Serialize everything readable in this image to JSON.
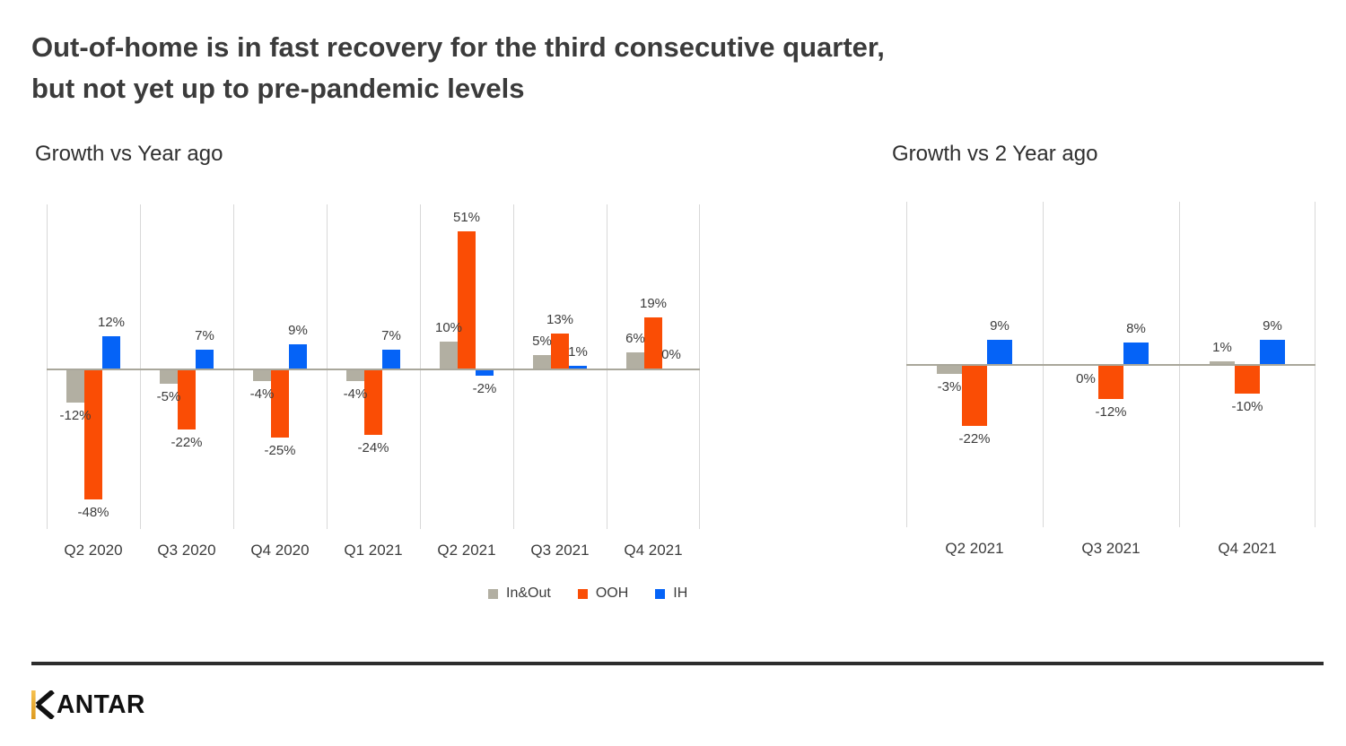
{
  "page": {
    "title_line1": "Out-of-home is in fast recovery for the third consecutive quarter,",
    "title_line2": "but not yet up to pre-pandemic levels"
  },
  "legend": {
    "items": [
      {
        "label": "In&Out",
        "color_key": "in_out"
      },
      {
        "label": "OOH",
        "color_key": "ooh"
      },
      {
        "label": "IH",
        "color_key": "ih"
      }
    ]
  },
  "footer": {
    "brand": "KANTAR"
  },
  "colors": {
    "in_out": "#b2afa2",
    "ooh": "#fa4d05",
    "ih": "#0563f7",
    "gridline": "#d8d8d8",
    "zero_line": "#a9a79b",
    "title_text": "#3b3b3b",
    "label_text": "#3c3c3c",
    "footer_rule": "#2d2d2d",
    "brand_gold": "#efac32"
  },
  "chart_data": [
    {
      "type": "bar",
      "title": "Growth vs Year ago",
      "categories": [
        "Q2 2020",
        "Q3 2020",
        "Q4 2020",
        "Q1 2021",
        "Q2 2021",
        "Q3 2021",
        "Q4 2021"
      ],
      "series": [
        {
          "name": "In&Out",
          "color_key": "in_out",
          "values": [
            -12,
            -5,
            -4,
            -4,
            10,
            5,
            6
          ],
          "labels": [
            "-12%",
            "-5%",
            "-4%",
            "-4%",
            "10%",
            "5%",
            "6%"
          ]
        },
        {
          "name": "OOH",
          "color_key": "ooh",
          "values": [
            -48,
            -22,
            -25,
            -24,
            51,
            13,
            19
          ],
          "labels": [
            "-48%",
            "-22%",
            "-25%",
            "-24%",
            "51%",
            "13%",
            "19%"
          ]
        },
        {
          "name": "IH",
          "color_key": "ih",
          "values": [
            12,
            7,
            9,
            7,
            -2,
            1,
            0
          ],
          "labels": [
            "12%",
            "7%",
            "9%",
            "7%",
            "-2%",
            "1%",
            "0%"
          ]
        }
      ],
      "ylim": [
        -58,
        61
      ],
      "grid": "vertical-only",
      "legend_position": "bottom",
      "zero_label_side": "above"
    },
    {
      "type": "bar",
      "title": "Growth vs 2 Year ago",
      "categories": [
        "Q2 2021",
        "Q3 2021",
        "Q4 2021"
      ],
      "series": [
        {
          "name": "In&Out",
          "color_key": "in_out",
          "values": [
            -3,
            0,
            1
          ],
          "labels": [
            "-3%",
            "0%",
            "1%"
          ]
        },
        {
          "name": "OOH",
          "color_key": "ooh",
          "values": [
            -22,
            -12,
            -10
          ],
          "labels": [
            "-22%",
            "-12%",
            "-10%"
          ]
        },
        {
          "name": "IH",
          "color_key": "ih",
          "values": [
            9,
            8,
            9
          ],
          "labels": [
            "9%",
            "8%",
            "9%"
          ]
        }
      ],
      "ylim": [
        -58,
        60
      ],
      "grid": "vertical-only",
      "legend_position": "none",
      "zero_label_side": "below"
    }
  ]
}
